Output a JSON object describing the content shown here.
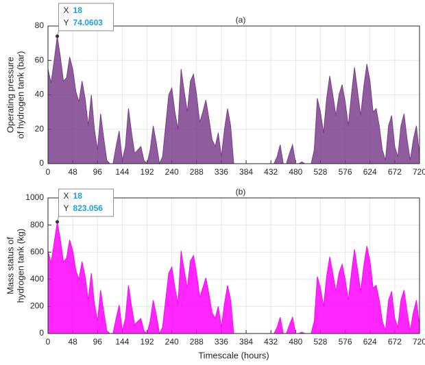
{
  "chart_data": [
    {
      "type": "area",
      "title": "(a)",
      "ylabel": [
        "Operating pressure",
        "of hydrogen tank (bar)"
      ],
      "color": "#7b3f8c",
      "grid": true,
      "x": [
        0,
        6,
        12,
        18,
        24,
        30,
        36,
        42,
        48,
        54,
        60,
        66,
        72,
        78,
        84,
        90,
        96,
        102,
        108,
        114,
        120,
        126,
        132,
        138,
        144,
        150,
        156,
        162,
        168,
        174,
        180,
        186,
        192,
        198,
        204,
        210,
        216,
        222,
        228,
        234,
        240,
        246,
        252,
        258,
        264,
        270,
        276,
        282,
        288,
        294,
        300,
        306,
        312,
        318,
        324,
        330,
        336,
        342,
        348,
        354,
        360,
        366,
        372,
        378,
        384,
        390,
        396,
        402,
        408,
        414,
        420,
        426,
        432,
        438,
        444,
        450,
        456,
        462,
        468,
        474,
        480,
        486,
        492,
        498,
        504,
        510,
        516,
        522,
        528,
        534,
        540,
        546,
        552,
        558,
        564,
        570,
        576,
        582,
        588,
        594,
        600,
        606,
        612,
        618,
        624,
        630,
        636,
        642,
        648,
        654,
        660,
        666,
        672,
        678,
        684,
        690,
        696,
        702,
        708,
        714,
        720
      ],
      "values": [
        55,
        47,
        60,
        74.0603,
        62,
        48,
        50,
        62,
        55,
        42,
        36,
        48,
        38,
        22,
        40,
        20,
        8,
        29,
        15,
        2,
        0,
        0,
        10,
        19,
        2,
        10,
        32,
        18,
        6,
        8,
        10,
        2,
        0,
        8,
        22,
        12,
        0,
        4,
        22,
        40,
        44,
        30,
        20,
        55,
        42,
        30,
        48,
        52,
        40,
        24,
        30,
        37,
        26,
        14,
        10,
        18,
        4,
        20,
        32,
        22,
        0,
        0,
        0,
        0,
        0,
        0,
        0,
        0,
        0,
        0,
        0,
        0,
        0,
        0,
        4,
        11,
        0,
        0,
        6,
        11,
        0,
        0,
        1,
        0,
        0,
        0,
        8,
        38,
        30,
        18,
        38,
        51,
        40,
        28,
        40,
        46,
        36,
        22,
        40,
        56,
        42,
        28,
        45,
        58,
        48,
        30,
        32,
        22,
        8,
        2,
        22,
        28,
        10,
        4,
        22,
        29,
        14,
        2,
        14,
        22,
        5
      ],
      "xlim": [
        0,
        720
      ],
      "xticks": [
        0,
        48,
        96,
        144,
        192,
        240,
        288,
        336,
        384,
        432,
        480,
        528,
        576,
        624,
        672,
        720
      ],
      "ylim": [
        0,
        80
      ],
      "yticks": [
        0,
        20,
        40,
        60,
        80
      ],
      "datatip": {
        "x_label": "X",
        "x": 18,
        "y_label": "Y",
        "y": 74.0603
      }
    },
    {
      "type": "area",
      "title": "(b)",
      "ylabel": [
        "Mass status of",
        "hydrogen tank (kg)"
      ],
      "xlabel": "Timescale (hours)",
      "color": "#ff00ff",
      "grid": true,
      "x": [
        0,
        6,
        12,
        18,
        24,
        30,
        36,
        42,
        48,
        54,
        60,
        66,
        72,
        78,
        84,
        90,
        96,
        102,
        108,
        114,
        120,
        126,
        132,
        138,
        144,
        150,
        156,
        162,
        168,
        174,
        180,
        186,
        192,
        198,
        204,
        210,
        216,
        222,
        228,
        234,
        240,
        246,
        252,
        258,
        264,
        270,
        276,
        282,
        288,
        294,
        300,
        306,
        312,
        318,
        324,
        330,
        336,
        342,
        348,
        354,
        360,
        366,
        372,
        378,
        384,
        390,
        396,
        402,
        408,
        414,
        420,
        426,
        432,
        438,
        444,
        450,
        456,
        462,
        468,
        474,
        480,
        486,
        492,
        498,
        504,
        510,
        516,
        522,
        528,
        534,
        540,
        546,
        552,
        558,
        564,
        570,
        576,
        582,
        588,
        594,
        600,
        606,
        612,
        618,
        624,
        630,
        636,
        642,
        648,
        654,
        660,
        666,
        672,
        678,
        684,
        690,
        696,
        702,
        708,
        714,
        720
      ],
      "values": [
        610,
        520,
        670,
        823.056,
        690,
        530,
        555,
        690,
        610,
        465,
        400,
        530,
        420,
        245,
        445,
        220,
        90,
        320,
        165,
        20,
        0,
        0,
        110,
        210,
        20,
        110,
        355,
        200,
        65,
        90,
        110,
        20,
        0,
        90,
        245,
        135,
        0,
        45,
        245,
        445,
        490,
        335,
        220,
        610,
        465,
        335,
        535,
        575,
        445,
        265,
        335,
        410,
        290,
        155,
        110,
        200,
        45,
        220,
        355,
        245,
        0,
        0,
        0,
        0,
        0,
        0,
        0,
        0,
        0,
        0,
        0,
        0,
        0,
        0,
        45,
        120,
        0,
        0,
        65,
        120,
        0,
        0,
        10,
        0,
        0,
        0,
        90,
        420,
        335,
        200,
        420,
        565,
        445,
        310,
        445,
        510,
        400,
        245,
        445,
        620,
        465,
        310,
        500,
        645,
        535,
        335,
        355,
        245,
        90,
        20,
        245,
        310,
        110,
        45,
        245,
        320,
        155,
        20,
        155,
        245,
        55
      ],
      "xlim": [
        0,
        720
      ],
      "xticks": [
        0,
        48,
        96,
        144,
        192,
        240,
        288,
        336,
        384,
        432,
        480,
        528,
        576,
        624,
        672,
        720
      ],
      "ylim": [
        0,
        1000
      ],
      "yticks": [
        0,
        200,
        400,
        600,
        800,
        1000
      ],
      "datatip": {
        "x_label": "X",
        "x": 18,
        "y_label": "Y",
        "y": 823.056
      }
    }
  ]
}
